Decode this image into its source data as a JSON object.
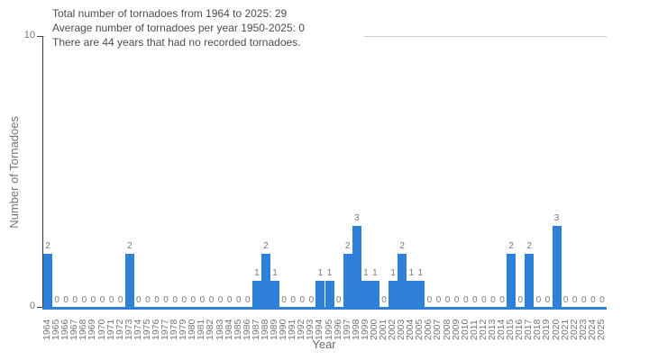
{
  "annotation": {
    "line1": "Total number of tornadoes from 1964 to 2025: 29",
    "line2": "Average number of tornadoes per year 1950-2025: 0",
    "line3": "There are 44 years that had no recorded tornadoes."
  },
  "chart_data": {
    "type": "bar",
    "title": "",
    "xlabel": "Year",
    "ylabel": "Number of Tornadoes",
    "ylim": [
      0,
      10
    ],
    "yticks": [
      0,
      10
    ],
    "grid": "single top gridline at y=10",
    "legend": "none",
    "bar_color": "#2f80d9",
    "value_label_color": "#7a7a7a",
    "categories": [
      1964,
      1965,
      1966,
      1967,
      1968,
      1969,
      1970,
      1971,
      1972,
      1973,
      1974,
      1975,
      1976,
      1977,
      1978,
      1979,
      1980,
      1981,
      1982,
      1983,
      1984,
      1985,
      1986,
      1987,
      1988,
      1989,
      1990,
      1991,
      1992,
      1993,
      1994,
      1995,
      1996,
      1997,
      1998,
      1999,
      2000,
      2001,
      2002,
      2003,
      2004,
      2005,
      2006,
      2007,
      2008,
      2009,
      2010,
      2011,
      2012,
      2013,
      2014,
      2015,
      2016,
      2017,
      2018,
      2019,
      2020,
      2021,
      2022,
      2023,
      2024,
      2025
    ],
    "values": [
      2,
      0,
      0,
      0,
      0,
      0,
      0,
      0,
      0,
      2,
      0,
      0,
      0,
      0,
      0,
      0,
      0,
      0,
      0,
      0,
      0,
      0,
      0,
      1,
      2,
      1,
      0,
      0,
      0,
      0,
      1,
      1,
      0,
      2,
      3,
      1,
      1,
      0,
      1,
      2,
      1,
      1,
      0,
      0,
      0,
      0,
      0,
      0,
      0,
      0,
      0,
      2,
      0,
      2,
      0,
      0,
      3,
      0,
      0,
      0,
      0,
      0
    ]
  }
}
